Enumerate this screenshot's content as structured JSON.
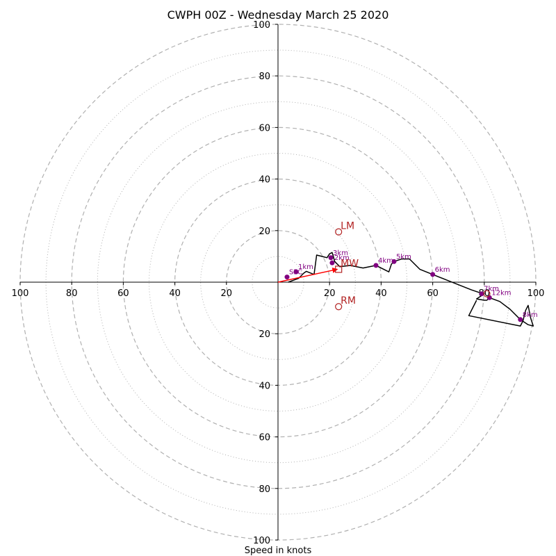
{
  "chart_data": {
    "type": "hodograph",
    "title": "CWPH 00Z - Wednesday March 25 2020",
    "xlabel": "Speed in knots",
    "xlim": [
      -100,
      100
    ],
    "ylim": [
      -100,
      100
    ],
    "grid": true,
    "rings_major": [
      20,
      40,
      60,
      80,
      100
    ],
    "rings_minor": [
      10,
      30,
      50,
      70,
      90
    ],
    "x_tick_labels": [
      "100",
      "80",
      "60",
      "40",
      "20",
      "20",
      "40",
      "60",
      "80",
      "100"
    ],
    "x_tick_values": [
      -100,
      -80,
      -60,
      -40,
      -20,
      20,
      40,
      60,
      80,
      100
    ],
    "y_tick_labels": [
      "100",
      "80",
      "60",
      "40",
      "20",
      "20",
      "40",
      "60",
      "80",
      "100"
    ],
    "y_tick_values": [
      100,
      80,
      60,
      40,
      20,
      -20,
      -40,
      -60,
      -80,
      -100
    ],
    "trace": [
      [
        4,
        0
      ],
      [
        8,
        1.5
      ],
      [
        10,
        3.5
      ],
      [
        11,
        4.2
      ],
      [
        14,
        3
      ],
      [
        15,
        10.5
      ],
      [
        17,
        10
      ],
      [
        19,
        9.5
      ],
      [
        20,
        11
      ],
      [
        21,
        11.5
      ],
      [
        21.5,
        9.8
      ],
      [
        22,
        8
      ],
      [
        24,
        6
      ],
      [
        28,
        6.5
      ],
      [
        33,
        5.5
      ],
      [
        38,
        6.5
      ],
      [
        43,
        4
      ],
      [
        44,
        7
      ],
      [
        45,
        8
      ],
      [
        48,
        9
      ],
      [
        51,
        9
      ],
      [
        55,
        5
      ],
      [
        60,
        3
      ],
      [
        65,
        1
      ],
      [
        70,
        -1
      ],
      [
        75,
        -3
      ],
      [
        78,
        -4
      ],
      [
        80,
        -4.5
      ],
      [
        77,
        -6.5
      ],
      [
        80,
        -7
      ],
      [
        81,
        -7
      ],
      [
        82,
        -6
      ],
      [
        86,
        -7.5
      ],
      [
        90,
        -10.5
      ],
      [
        94,
        -14.5
      ],
      [
        97,
        -16.5
      ],
      [
        99,
        -17
      ],
      [
        98,
        -14
      ],
      [
        97,
        -9
      ],
      [
        96,
        -11
      ],
      [
        95,
        -15
      ],
      [
        94,
        -17
      ],
      [
        74,
        -13
      ],
      [
        77,
        -7
      ]
    ],
    "height_markers": [
      {
        "label": "SFC",
        "u": 3.5,
        "v": 2
      },
      {
        "label": "1km",
        "u": 7,
        "v": 4
      },
      {
        "label": "2km",
        "u": 21,
        "v": 7.5
      },
      {
        "label": "3km",
        "u": 20.5,
        "v": 9.5
      },
      {
        "label": "4km",
        "u": 38,
        "v": 6.5
      },
      {
        "label": "5km",
        "u": 45,
        "v": 8
      },
      {
        "label": "6km",
        "u": 60,
        "v": 3
      },
      {
        "label": "7km",
        "u": 79,
        "v": -4.5
      },
      {
        "label": "12km",
        "u": 82,
        "v": -6
      },
      {
        "label": "8km",
        "u": 94,
        "v": -14.5
      }
    ],
    "storm_motion": [
      {
        "label": "LM",
        "u": 23.5,
        "v": 19.5
      },
      {
        "label": "RM",
        "u": 23.5,
        "v": -9.5
      },
      {
        "label": "MW",
        "u": 23.5,
        "v": 5
      },
      {
        "label": "",
        "u": 81,
        "v": -4.5
      }
    ],
    "mean_wind_vector": {
      "u": 23,
      "v": 5
    },
    "colors": {
      "trace": "#000000",
      "markers": "#800080",
      "storm_motion": "#b22222",
      "vector": "#ff0000",
      "grid": "#b0b0b0"
    }
  }
}
